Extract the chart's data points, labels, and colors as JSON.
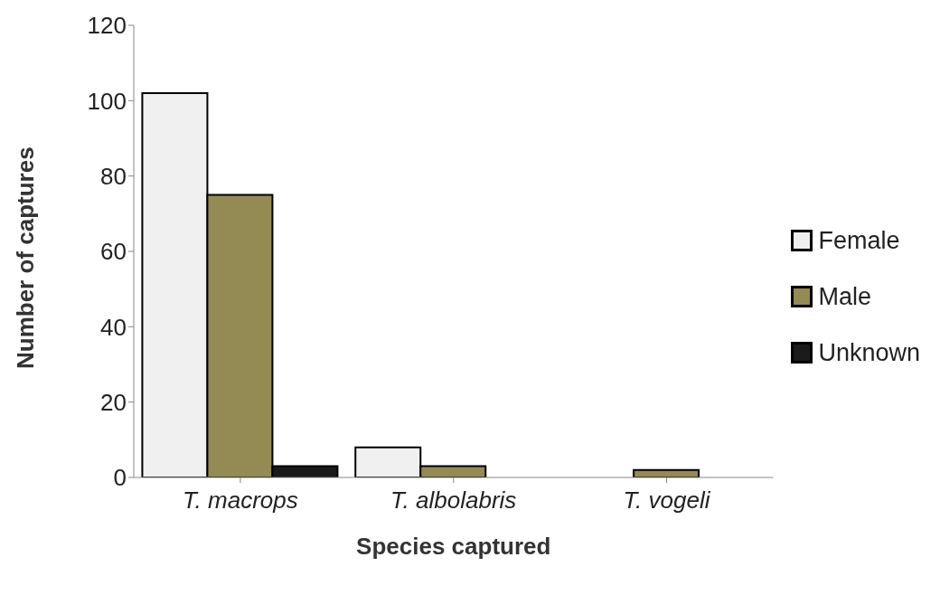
{
  "chart_data": {
    "type": "bar",
    "xlabel": "Species captured",
    "ylabel": "Number of captures",
    "categories": [
      "T. macrops",
      "T. albolabris",
      "T. vogeli"
    ],
    "series": [
      {
        "name": "Female",
        "color": "#f0f0f0",
        "values": [
          102,
          8,
          0
        ]
      },
      {
        "name": "Male",
        "color": "#948a54",
        "values": [
          75,
          3,
          2
        ]
      },
      {
        "name": "Unknown",
        "color": "#1a1a1a",
        "values": [
          3,
          0,
          0
        ]
      }
    ],
    "ylim": [
      0,
      120
    ],
    "yticks": [
      0,
      20,
      40,
      60,
      80,
      100,
      120
    ],
    "grid": false,
    "legend": "right"
  }
}
